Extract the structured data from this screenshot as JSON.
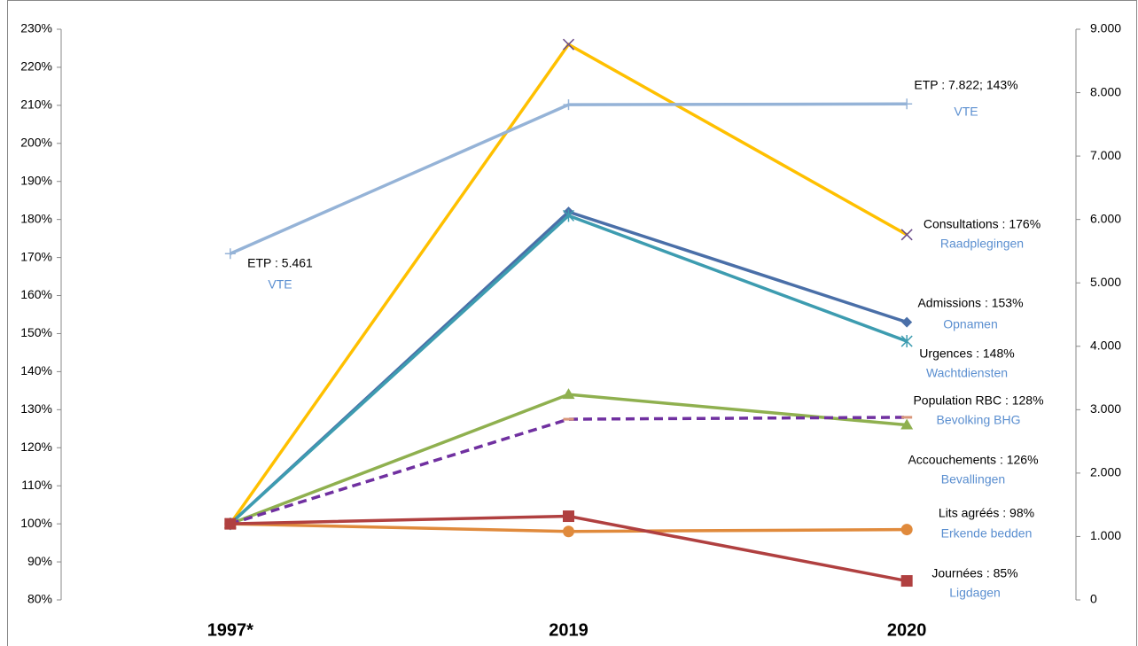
{
  "chart_data": {
    "type": "line",
    "categories": [
      "1997*",
      "2019",
      "2020"
    ],
    "ylim": [
      80,
      230
    ],
    "yticks": [
      {
        "value": 80,
        "label": "80%"
      },
      {
        "value": 90,
        "label": "90%"
      },
      {
        "value": 100,
        "label": "100%"
      },
      {
        "value": 110,
        "label": "110%"
      },
      {
        "value": 120,
        "label": "120%"
      },
      {
        "value": 130,
        "label": "130%"
      },
      {
        "value": 140,
        "label": "140%"
      },
      {
        "value": 150,
        "label": "150%"
      },
      {
        "value": 160,
        "label": "160%"
      },
      {
        "value": 170,
        "label": "170%"
      },
      {
        "value": 180,
        "label": "180%"
      },
      {
        "value": 190,
        "label": "190%"
      },
      {
        "value": 200,
        "label": "200%"
      },
      {
        "value": 210,
        "label": "210%"
      },
      {
        "value": 220,
        "label": "220%"
      },
      {
        "value": 230,
        "label": "230%"
      }
    ],
    "y2lim": [
      0,
      9000
    ],
    "y2ticks": [
      0,
      {
        "value": 1000,
        "label": "1.000"
      },
      {
        "value": 2000,
        "label": "2.000"
      },
      {
        "value": 3000,
        "label": "3.000"
      },
      {
        "value": 4000,
        "label": "4.000"
      },
      {
        "value": 5000,
        "label": "5.000"
      },
      {
        "value": 6000,
        "label": "6.000"
      },
      {
        "value": 7000,
        "label": "7.000"
      },
      {
        "value": 8000,
        "label": "8.000"
      },
      {
        "value": 9000,
        "label": "9.000"
      }
    ],
    "grid": false,
    "series": [
      {
        "name": "Consultations",
        "color": "#FFC000",
        "marker": "x",
        "values": [
          100,
          226,
          176
        ]
      },
      {
        "name": "ETP",
        "color": "#95B3D7",
        "marker": "plus",
        "axis": "y2",
        "values": [
          5461,
          7810,
          7822
        ]
      },
      {
        "name": "Admissions",
        "color": "#4A6FA8",
        "marker": "diamond",
        "values": [
          100,
          182,
          153
        ]
      },
      {
        "name": "Urgences",
        "color": "#3D9CB0",
        "marker": "star",
        "values": [
          100,
          181,
          148
        ]
      },
      {
        "name": "Accouchements",
        "color": "#8FB04F",
        "marker": "triangle",
        "values": [
          100,
          134,
          126
        ]
      },
      {
        "name": "Population RBC",
        "color": "#7030A0",
        "marker": "dash",
        "dashed": true,
        "values": [
          100,
          127.5,
          128
        ]
      },
      {
        "name": "Lits agréés",
        "color": "#E08A3C",
        "marker": "circle",
        "values": [
          100,
          98,
          98.5
        ]
      },
      {
        "name": "Journées",
        "color": "#B04040",
        "marker": "square",
        "values": [
          100,
          102,
          85
        ]
      }
    ],
    "annotations": [
      {
        "text": "ETP : 5.461",
        "translation": "VTE"
      },
      {
        "text": "ETP : 7.822; 143%",
        "translation": "VTE"
      },
      {
        "text": "Consultations : 176%",
        "translation": "Raadplegingen"
      },
      {
        "text": "Admissions : 153%",
        "translation": "Opnamen"
      },
      {
        "text": "Urgences : 148%",
        "translation": "Wachtdiensten"
      },
      {
        "text": "Population RBC : 128%",
        "translation": "Bevolking BHG"
      },
      {
        "text": "Accouchements : 126%",
        "translation": "Bevallingen"
      },
      {
        "text": "Lits agréés : 98%",
        "translation": "Erkende bedden"
      },
      {
        "text": "Journées : 85%",
        "translation": "Ligdagen"
      }
    ]
  }
}
